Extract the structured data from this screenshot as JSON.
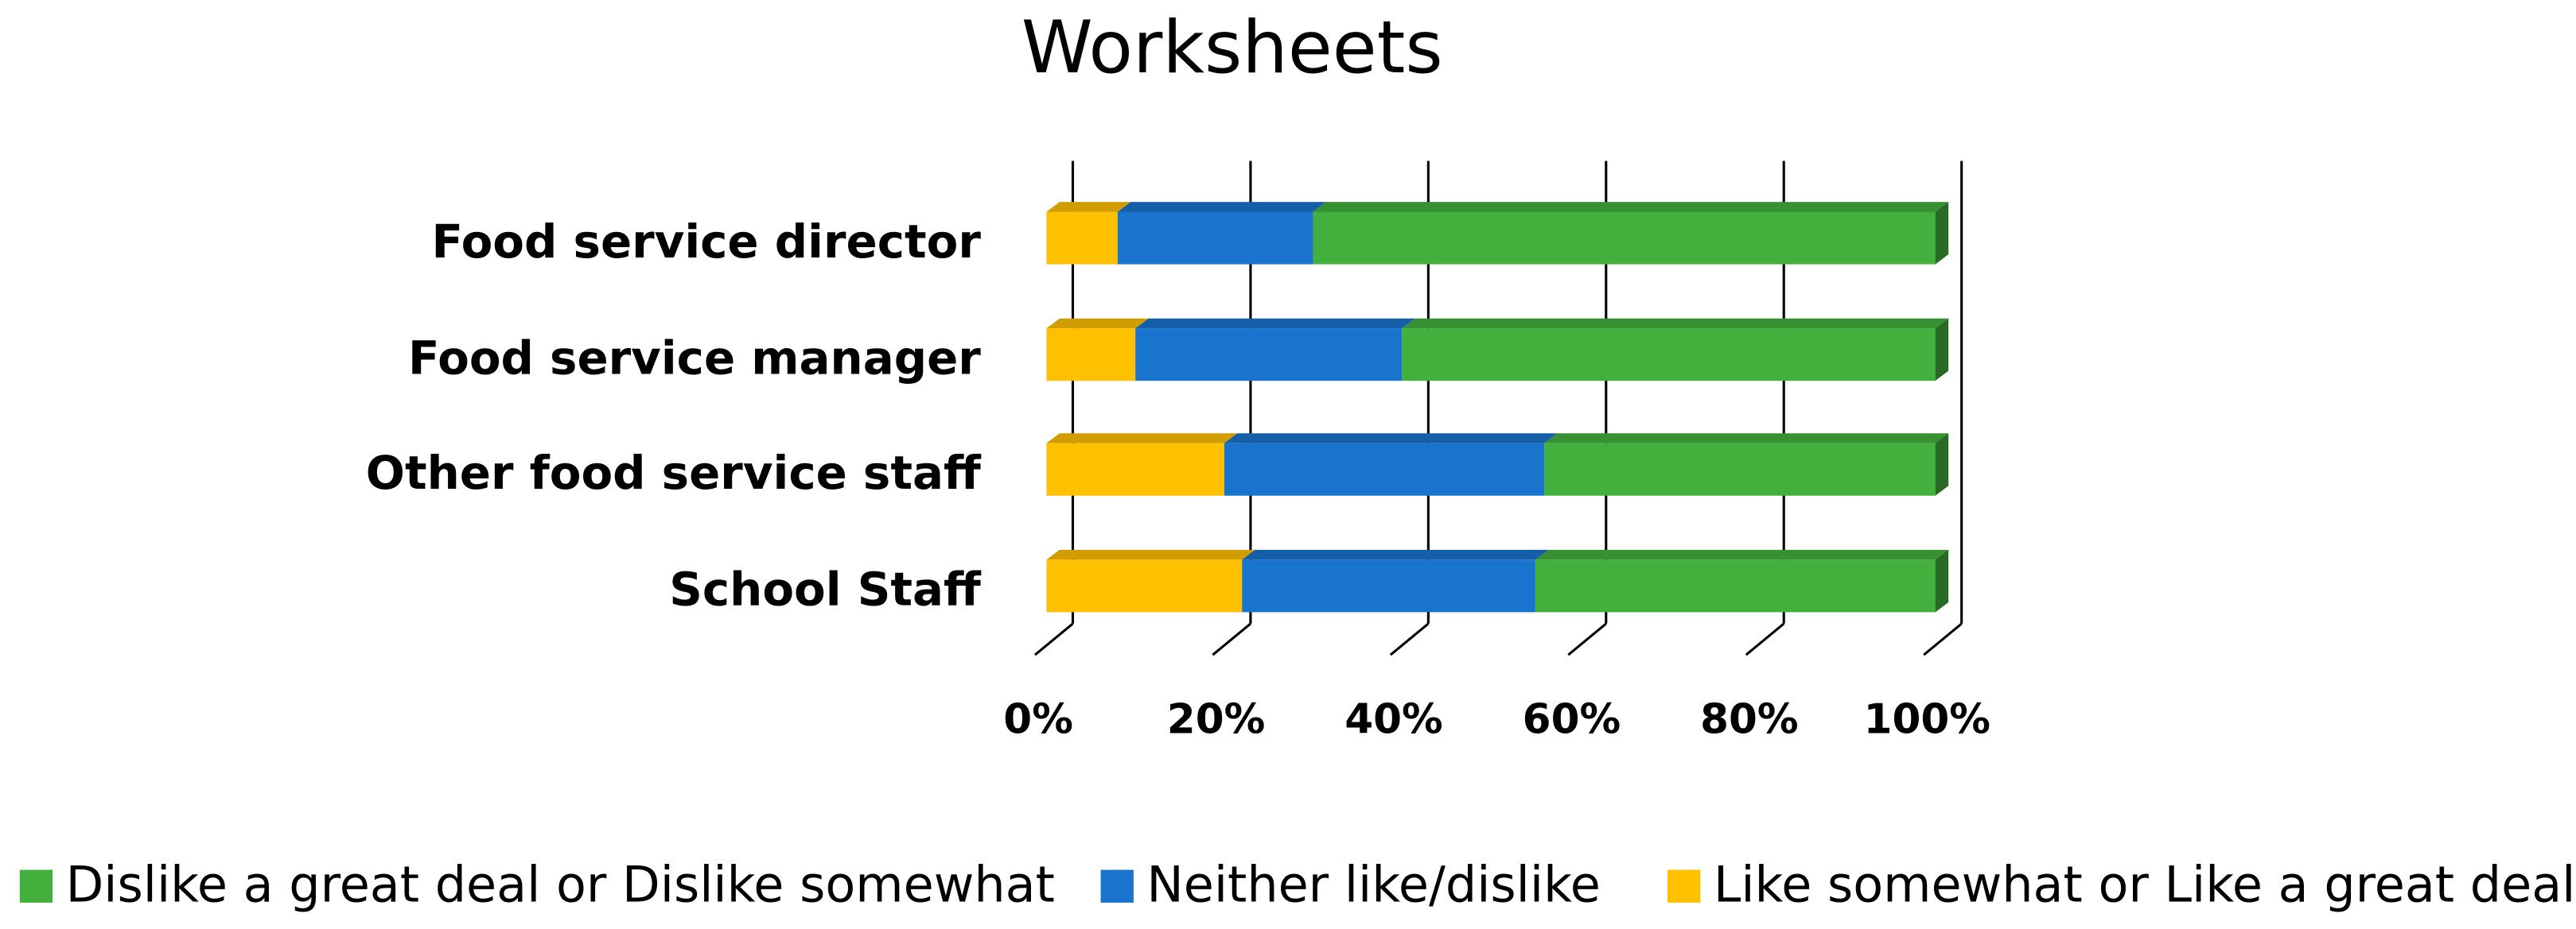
{
  "chart_data": {
    "type": "bar",
    "orientation": "horizontal",
    "stacked": true,
    "title": "Worksheets",
    "categories": [
      "Food service director",
      "Food service manager",
      "Other food service staff",
      "School Staff"
    ],
    "series": [
      {
        "name": "Dislike a great deal or Dislike somewhat",
        "color": "#43b03d",
        "values": [
          70,
          60,
          44,
          45
        ]
      },
      {
        "name": "Neither like/dislike",
        "color": "#1874cd",
        "values": [
          22,
          30,
          36,
          33
        ]
      },
      {
        "name": "Like somewhat or Like a great deal",
        "color": "#ffc000",
        "values": [
          8,
          10,
          20,
          22
        ]
      }
    ],
    "xlim": [
      0,
      100
    ],
    "xticks": [
      {
        "value": 0,
        "label": "0%"
      },
      {
        "value": 20,
        "label": "20%"
      },
      {
        "value": 40,
        "label": "40%"
      },
      {
        "value": 60,
        "label": "60%"
      },
      {
        "value": 80,
        "label": "80%"
      },
      {
        "value": 100,
        "label": "100%"
      }
    ],
    "grid": true,
    "legend": "bottom"
  }
}
